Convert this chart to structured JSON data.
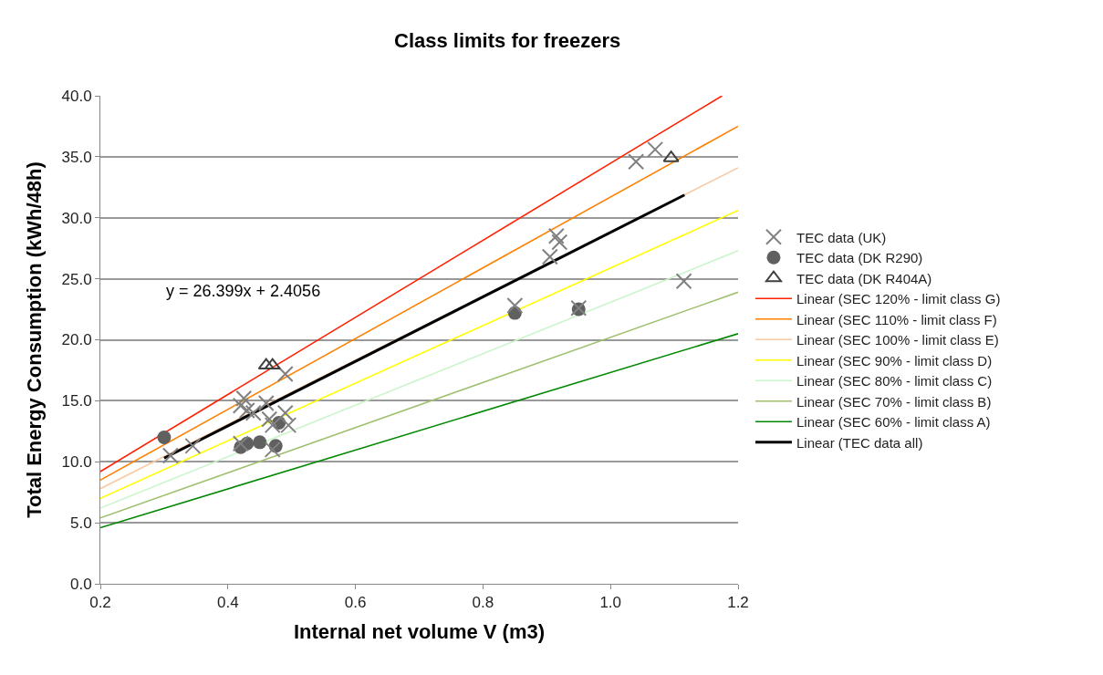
{
  "chart_data": {
    "type": "scatter",
    "title": "Class limits for freezers",
    "xlabel": "Internal net volume V (m3)",
    "ylabel": "Total Energy Consumption (kWh/48h)",
    "xlim": [
      0.2,
      1.2
    ],
    "xticks": [
      {
        "value": 0.2,
        "label": "0.2"
      },
      {
        "value": 0.4,
        "label": "0.4"
      },
      {
        "value": 0.6,
        "label": "0.6"
      },
      {
        "value": 0.8,
        "label": "0.8"
      },
      {
        "value": 1.0,
        "label": "1.0"
      },
      {
        "value": 1.2,
        "label": "1.2"
      }
    ],
    "ylim": [
      0,
      40
    ],
    "yticks": [
      {
        "value": 0,
        "label": "0.0"
      },
      {
        "value": 5,
        "label": "5.0"
      },
      {
        "value": 10,
        "label": "10.0"
      },
      {
        "value": 15,
        "label": "15.0"
      },
      {
        "value": 20,
        "label": "20.0"
      },
      {
        "value": 25,
        "label": "25.0"
      },
      {
        "value": 30,
        "label": "30.0"
      },
      {
        "value": 35,
        "label": "35.0"
      },
      {
        "value": 40,
        "label": "40.0"
      }
    ],
    "grid": "y",
    "legend": "right",
    "annotations": [
      "y = 26.399x + 2.4056"
    ],
    "series": [
      {
        "name": "TEC data (UK)",
        "marker": "cross",
        "color": "#808080",
        "x": [
          0.31,
          0.345,
          0.42,
          0.425,
          0.43,
          0.44,
          0.46,
          0.465,
          0.47,
          0.49,
          0.495,
          0.49,
          0.85,
          0.95,
          0.905,
          0.915,
          0.92,
          1.04,
          1.07,
          1.115,
          0.42,
          0.47
        ],
        "values": [
          10.5,
          11.3,
          14.6,
          15.2,
          14.2,
          14.0,
          14.8,
          13.5,
          13.0,
          14.0,
          13.0,
          17.2,
          22.8,
          22.6,
          26.8,
          28.5,
          28.0,
          34.6,
          35.6,
          24.8,
          11.5,
          11.0
        ]
      },
      {
        "name": "TEC data (DK R290)",
        "marker": "circle",
        "color": "#606060",
        "x": [
          0.3,
          0.42,
          0.43,
          0.45,
          0.475,
          0.48,
          0.85,
          0.95
        ],
        "values": [
          12.0,
          11.2,
          11.5,
          11.6,
          11.3,
          13.2,
          22.2,
          22.5
        ]
      },
      {
        "name": "TEC data (DK R404A)",
        "marker": "triangle",
        "color": "#404040",
        "x": [
          0.46,
          0.47,
          1.095
        ],
        "values": [
          17.9,
          17.9,
          34.9
        ]
      },
      {
        "name": "Linear (SEC 120% - limit class G)",
        "type": "line",
        "color": "#ff2000",
        "x": [
          0.2,
          1.175
        ],
        "values": [
          9.2,
          40.0
        ]
      },
      {
        "name": "Linear (SEC 110% - limit class F)",
        "type": "line",
        "color": "#ff8000",
        "x": [
          0.2,
          1.2
        ],
        "values": [
          8.5,
          37.5
        ]
      },
      {
        "name": "Linear (SEC 100% - limit class E)",
        "type": "line",
        "color": "#fcc8a0",
        "x": [
          0.2,
          1.2
        ],
        "values": [
          7.8,
          34.1
        ]
      },
      {
        "name": "Linear (SEC 90% - limit class D)",
        "type": "line",
        "color": "#ffff00",
        "x": [
          0.2,
          1.2
        ],
        "values": [
          7.0,
          30.6
        ]
      },
      {
        "name": "Linear (SEC 80% - limit class C)",
        "type": "line",
        "color": "#ccf5cc",
        "x": [
          0.2,
          1.2
        ],
        "values": [
          6.2,
          27.3
        ]
      },
      {
        "name": "Linear (SEC 70% - limit class B)",
        "type": "line",
        "color": "#a0c070",
        "x": [
          0.2,
          1.2
        ],
        "values": [
          5.4,
          23.9
        ]
      },
      {
        "name": "Linear (SEC 60% - limit class A)",
        "type": "line",
        "color": "#008800",
        "x": [
          0.2,
          1.2
        ],
        "values": [
          4.6,
          20.5
        ]
      },
      {
        "name": "Linear (TEC data all)",
        "type": "line",
        "color": "#000000",
        "x": [
          0.3,
          1.116
        ],
        "values": [
          10.3,
          31.87
        ]
      }
    ]
  }
}
